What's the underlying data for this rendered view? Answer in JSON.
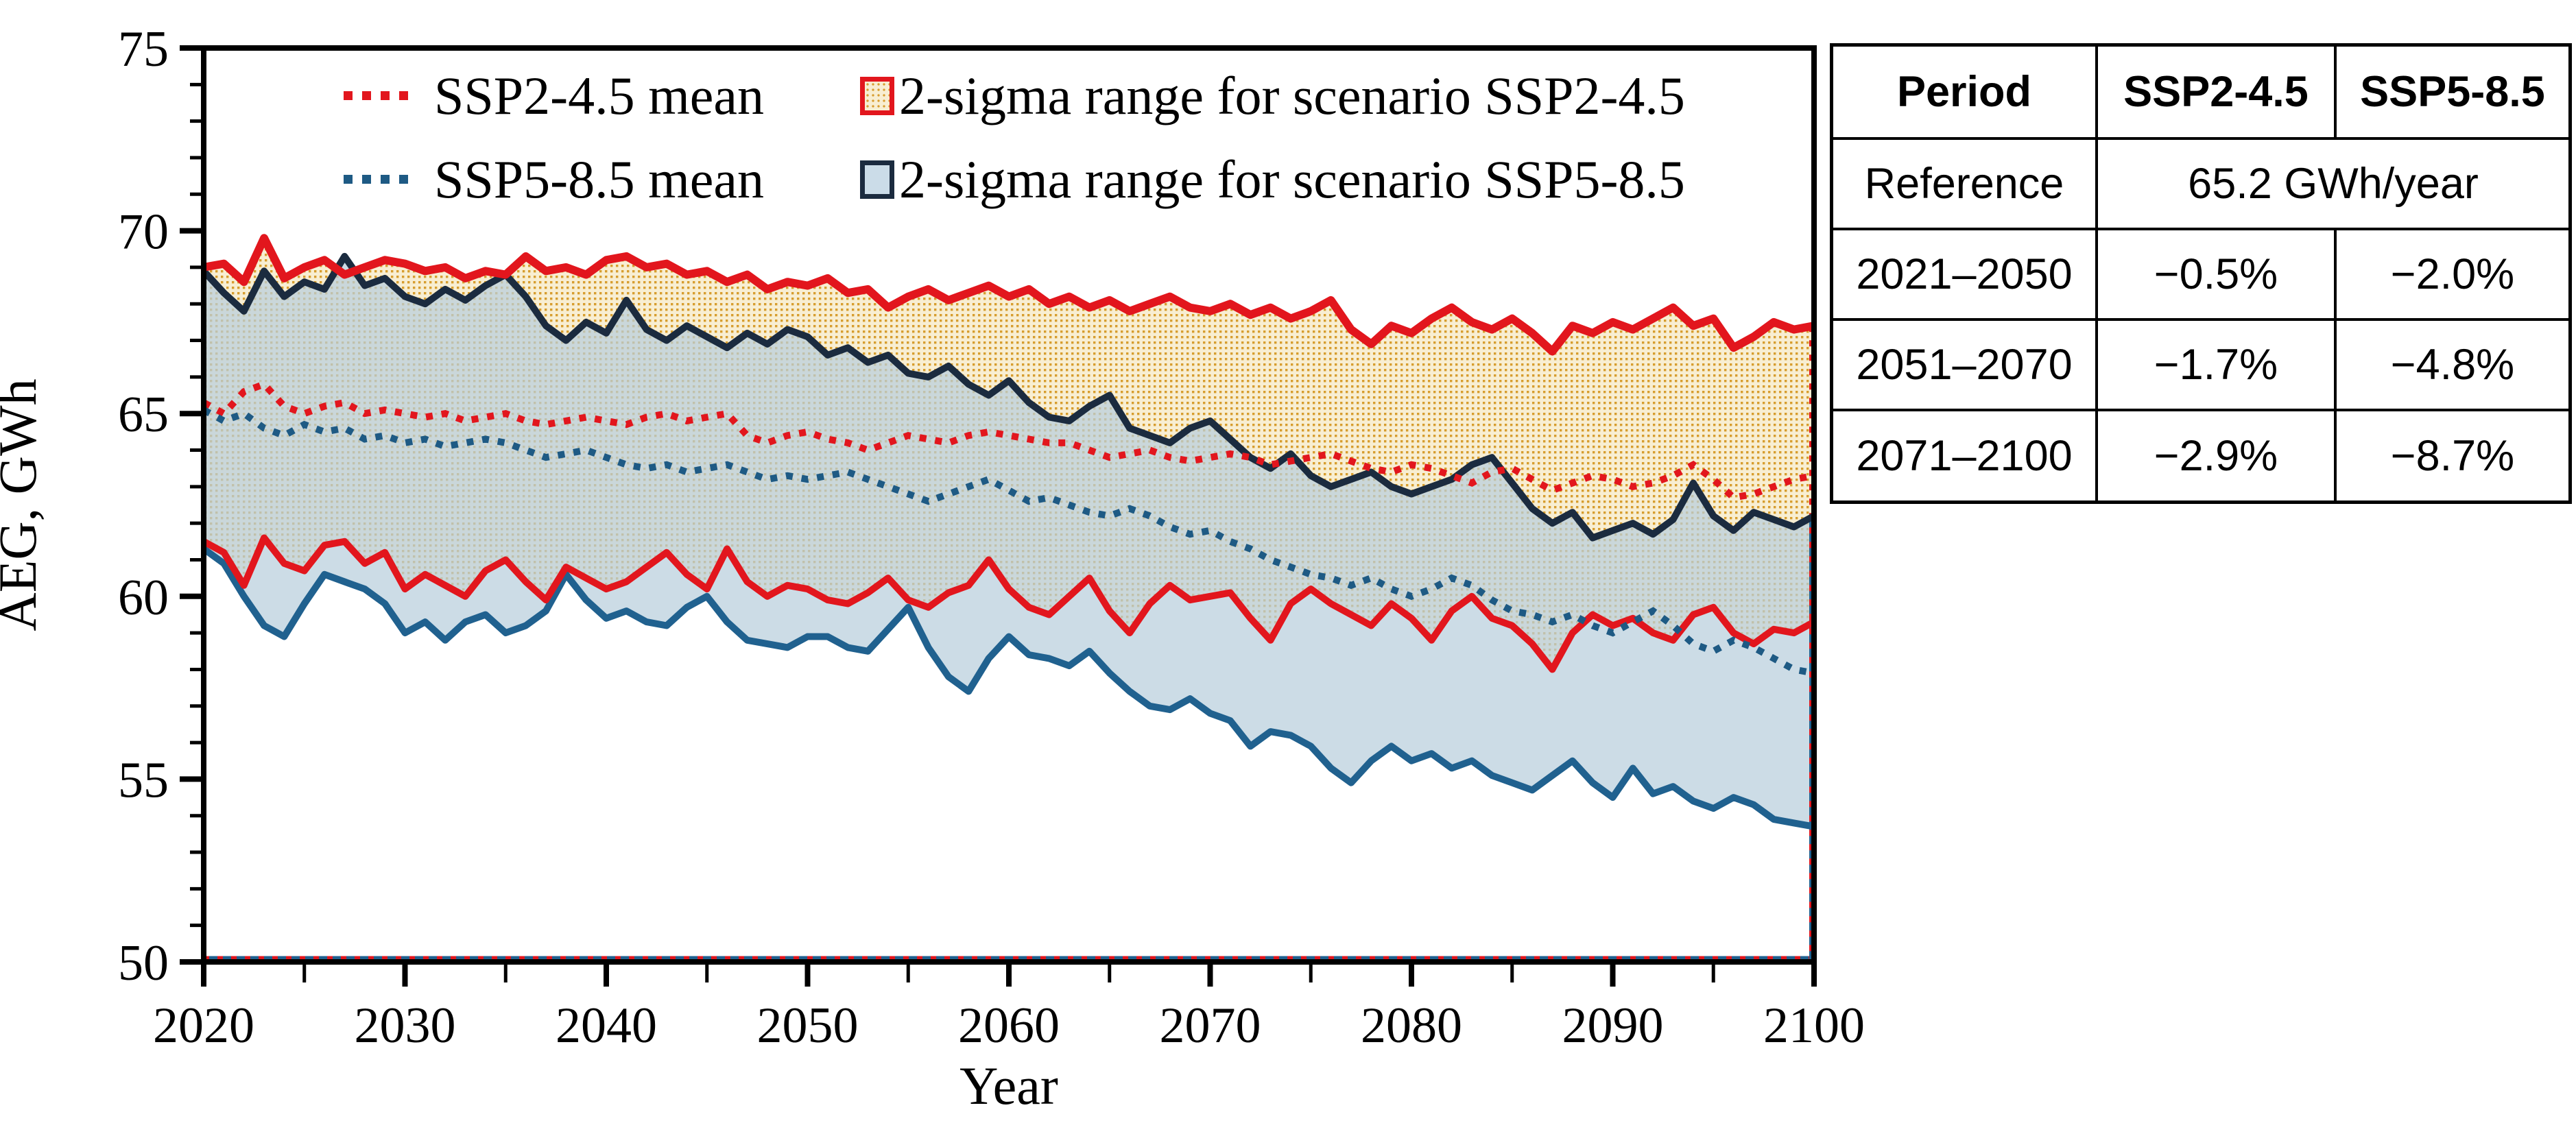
{
  "legend": {
    "ssp2_mean_label": "SSP2-4.5 mean",
    "ssp5_mean_label": "SSP5-8.5 mean",
    "ssp2_range_label": "2-sigma range for scenario SSP2-4.5",
    "ssp5_range_label": "2-sigma range for scenario SSP5-8.5"
  },
  "axes": {
    "x_label": "Year",
    "y_label": "AEG, GWh",
    "x_ticks": [
      "2020",
      "2030",
      "2040",
      "2050",
      "2060",
      "2070",
      "2080",
      "2090",
      "2100"
    ],
    "x_minor_ticks": [
      2025,
      2035,
      2045,
      2055,
      2065,
      2075,
      2085,
      2095
    ],
    "y_ticks": [
      "50",
      "55",
      "60",
      "65",
      "70",
      "75"
    ]
  },
  "table": {
    "headers": [
      "Period",
      "SSP2-4.5",
      "SSP5-8.5"
    ],
    "reference": {
      "label": "Reference",
      "value": "65.2 GWh/year"
    },
    "rows": [
      {
        "period": "2021–2050",
        "ssp2": "−0.5%",
        "ssp5": "−2.0%"
      },
      {
        "period": "2051–2070",
        "ssp2": "−1.7%",
        "ssp5": "−4.8%"
      },
      {
        "period": "2071–2100",
        "ssp2": "−2.9%",
        "ssp5": "−8.7%"
      }
    ]
  },
  "colors": {
    "red": "#e2161d",
    "navy": "#1b2b3f",
    "steel_blue": "#20618f",
    "mean_blue": "#1e5a84",
    "cream": "#f8eed2",
    "gold_dot": "#d79d2e",
    "ssp5_fill": "#b9cedd",
    "frame": "#000000"
  },
  "chart_data": {
    "type": "line",
    "title": "",
    "xlabel": "Year",
    "ylabel": "AEG, GWh",
    "xlim": [
      2020,
      2100
    ],
    "ylim": [
      50,
      75
    ],
    "x_start": 2020,
    "x_step": 1,
    "grid": false,
    "legend_position": "top-inside",
    "series": [
      {
        "name": "SSP2-4.5 mean",
        "style": "dotted",
        "color": "#e2161d",
        "values": [
          65.3,
          65.0,
          65.6,
          65.8,
          65.2,
          65.0,
          65.2,
          65.3,
          65.0,
          65.1,
          65.0,
          64.9,
          65.0,
          64.8,
          64.9,
          65.0,
          64.8,
          64.7,
          64.8,
          64.9,
          64.8,
          64.7,
          64.9,
          65.0,
          64.8,
          64.9,
          65.0,
          64.4,
          64.2,
          64.4,
          64.5,
          64.3,
          64.2,
          64.0,
          64.2,
          64.4,
          64.3,
          64.2,
          64.4,
          64.5,
          64.4,
          64.3,
          64.2,
          64.2,
          64.0,
          63.8,
          63.9,
          64.0,
          63.8,
          63.7,
          63.8,
          63.9,
          63.8,
          63.6,
          63.7,
          63.8,
          63.9,
          63.7,
          63.5,
          63.4,
          63.6,
          63.5,
          63.3,
          63.1,
          63.4,
          63.5,
          63.2,
          62.9,
          63.1,
          63.3,
          63.2,
          63.0,
          63.1,
          63.3,
          63.6,
          63.2,
          62.7,
          62.8,
          63.0,
          63.2,
          63.3
        ]
      },
      {
        "name": "SSP5-8.5 mean",
        "style": "dotted",
        "color": "#1e5a84",
        "values": [
          65.1,
          64.8,
          65.0,
          64.6,
          64.4,
          64.7,
          64.5,
          64.6,
          64.3,
          64.4,
          64.2,
          64.3,
          64.1,
          64.2,
          64.3,
          64.2,
          64.0,
          63.8,
          63.9,
          64.0,
          63.8,
          63.6,
          63.5,
          63.6,
          63.4,
          63.5,
          63.6,
          63.4,
          63.2,
          63.3,
          63.2,
          63.3,
          63.4,
          63.2,
          63.0,
          62.8,
          62.6,
          62.8,
          63.0,
          63.2,
          62.9,
          62.6,
          62.7,
          62.5,
          62.3,
          62.2,
          62.4,
          62.2,
          61.9,
          61.7,
          61.8,
          61.5,
          61.3,
          61.0,
          60.8,
          60.6,
          60.5,
          60.3,
          60.5,
          60.2,
          60.0,
          60.2,
          60.5,
          60.3,
          59.9,
          59.6,
          59.5,
          59.3,
          59.5,
          59.2,
          59.0,
          59.3,
          59.6,
          59.2,
          58.7,
          58.5,
          58.8,
          58.6,
          58.3,
          58.0,
          57.9
        ]
      },
      {
        "name": "SSP2-4.5 2-sigma upper",
        "style": "solid",
        "color": "#e2161d",
        "values": [
          69.0,
          69.1,
          68.6,
          69.8,
          68.7,
          69.0,
          69.2,
          68.8,
          69.0,
          69.2,
          69.1,
          68.9,
          69.0,
          68.7,
          68.9,
          68.8,
          69.3,
          68.9,
          69.0,
          68.8,
          69.2,
          69.3,
          69.0,
          69.1,
          68.8,
          68.9,
          68.6,
          68.8,
          68.4,
          68.6,
          68.5,
          68.7,
          68.3,
          68.4,
          67.9,
          68.2,
          68.4,
          68.1,
          68.3,
          68.5,
          68.2,
          68.4,
          68.0,
          68.2,
          67.9,
          68.1,
          67.8,
          68.0,
          68.2,
          67.9,
          67.8,
          68.0,
          67.7,
          67.9,
          67.6,
          67.8,
          68.1,
          67.3,
          66.9,
          67.4,
          67.2,
          67.6,
          67.9,
          67.5,
          67.3,
          67.6,
          67.2,
          66.7,
          67.4,
          67.2,
          67.5,
          67.3,
          67.6,
          67.9,
          67.4,
          67.6,
          66.8,
          67.1,
          67.5,
          67.3,
          67.4
        ]
      },
      {
        "name": "SSP2-4.5 2-sigma lower",
        "style": "solid",
        "color": "#e2161d",
        "values": [
          61.5,
          61.2,
          60.3,
          61.6,
          60.9,
          60.7,
          61.4,
          61.5,
          60.9,
          61.2,
          60.2,
          60.6,
          60.3,
          60.0,
          60.7,
          61.0,
          60.4,
          59.9,
          60.8,
          60.5,
          60.2,
          60.4,
          60.8,
          61.2,
          60.6,
          60.2,
          61.3,
          60.4,
          60.0,
          60.3,
          60.2,
          59.9,
          59.8,
          60.1,
          60.5,
          59.9,
          59.7,
          60.1,
          60.3,
          61.0,
          60.2,
          59.7,
          59.5,
          60.0,
          60.5,
          59.6,
          59.0,
          59.8,
          60.3,
          59.9,
          60.0,
          60.1,
          59.4,
          58.8,
          59.8,
          60.2,
          59.8,
          59.5,
          59.2,
          59.8,
          59.4,
          58.8,
          59.6,
          60.0,
          59.4,
          59.2,
          58.7,
          58.0,
          59.0,
          59.5,
          59.2,
          59.4,
          59.0,
          58.8,
          59.5,
          59.7,
          59.0,
          58.7,
          59.1,
          59.0,
          59.3
        ]
      },
      {
        "name": "SSP5-8.5 2-sigma upper",
        "style": "solid",
        "color": "#1b2b3f",
        "values": [
          68.9,
          68.3,
          67.8,
          68.9,
          68.2,
          68.6,
          68.4,
          69.3,
          68.5,
          68.7,
          68.2,
          68.0,
          68.4,
          68.1,
          68.5,
          68.8,
          68.2,
          67.4,
          67.0,
          67.5,
          67.2,
          68.1,
          67.3,
          67.0,
          67.4,
          67.1,
          66.8,
          67.2,
          66.9,
          67.3,
          67.1,
          66.6,
          66.8,
          66.4,
          66.6,
          66.1,
          66.0,
          66.3,
          65.8,
          65.5,
          65.9,
          65.3,
          64.9,
          64.8,
          65.2,
          65.5,
          64.6,
          64.4,
          64.2,
          64.6,
          64.8,
          64.3,
          63.8,
          63.5,
          63.9,
          63.3,
          63.0,
          63.2,
          63.4,
          63.0,
          62.8,
          63.0,
          63.2,
          63.6,
          63.8,
          63.1,
          62.4,
          62.0,
          62.3,
          61.6,
          61.8,
          62.0,
          61.7,
          62.1,
          63.1,
          62.2,
          61.8,
          62.3,
          62.1,
          61.9,
          62.2
        ]
      },
      {
        "name": "SSP5-8.5 2-sigma lower",
        "style": "solid",
        "color": "#20618f",
        "values": [
          61.3,
          60.9,
          60.0,
          59.2,
          58.9,
          59.8,
          60.6,
          60.4,
          60.2,
          59.8,
          59.0,
          59.3,
          58.8,
          59.3,
          59.5,
          59.0,
          59.2,
          59.6,
          60.6,
          59.9,
          59.4,
          59.6,
          59.3,
          59.2,
          59.7,
          60.0,
          59.3,
          58.8,
          58.7,
          58.6,
          58.9,
          58.9,
          58.6,
          58.5,
          59.1,
          59.7,
          58.6,
          57.8,
          57.4,
          58.3,
          58.9,
          58.4,
          58.3,
          58.1,
          58.5,
          57.9,
          57.4,
          57.0,
          56.9,
          57.2,
          56.8,
          56.6,
          55.9,
          56.3,
          56.2,
          55.9,
          55.3,
          54.9,
          55.5,
          55.9,
          55.5,
          55.7,
          55.3,
          55.5,
          55.1,
          54.9,
          54.7,
          55.1,
          55.5,
          54.9,
          54.5,
          55.3,
          54.6,
          54.8,
          54.4,
          54.2,
          54.5,
          54.3,
          53.9,
          53.8,
          53.7
        ]
      }
    ],
    "bands": [
      {
        "name": "2-sigma range for scenario SSP2-4.5",
        "upper_series": 2,
        "lower_series": 3,
        "fill": "gold-dot-pattern"
      },
      {
        "name": "2-sigma range for scenario SSP5-8.5",
        "upper_series": 4,
        "lower_series": 5,
        "fill": "#cbdce8"
      }
    ]
  }
}
